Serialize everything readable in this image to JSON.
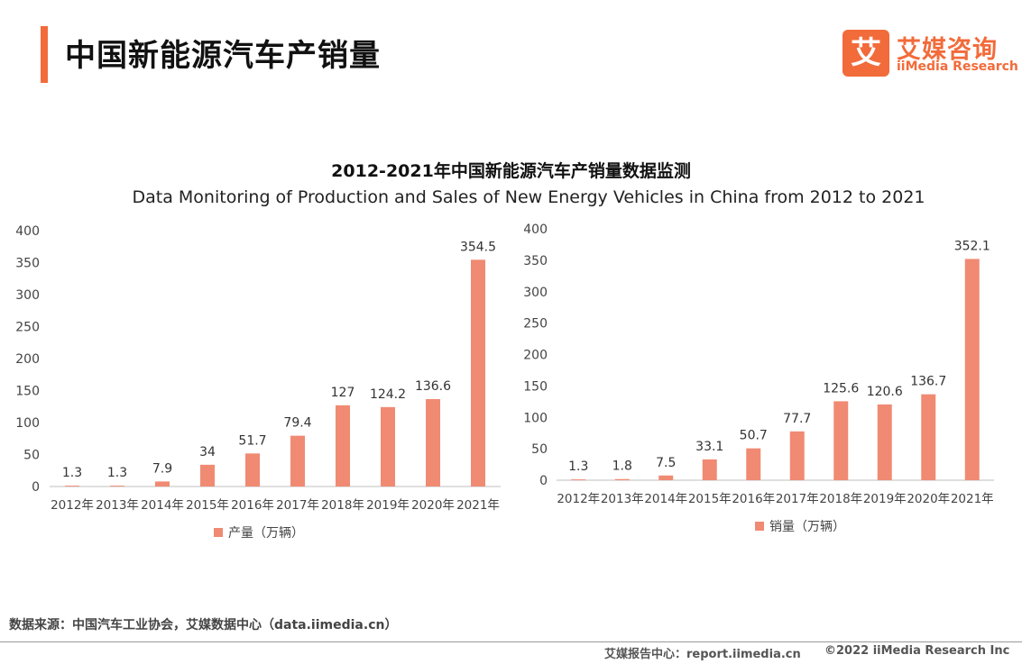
{
  "header": {
    "title": "中国新能源汽车产销量"
  },
  "logo": {
    "mark": "艾",
    "cn": "艾媒咨询",
    "en": "iiMedia Research"
  },
  "colors": {
    "accent": "#f26b3a",
    "bar": "#f08a73"
  },
  "chart_data": [
    {
      "type": "bar",
      "title": "2012-2021年中国新能源汽车产销量数据监测",
      "subtitle": "Data Monitoring of Production and Sales of New Energy Vehicles in China from 2012 to 2021",
      "categories": [
        "2012年",
        "2013年",
        "2014年",
        "2015年",
        "2016年",
        "2017年",
        "2018年",
        "2019年",
        "2020年",
        "2021年"
      ],
      "series": [
        {
          "name": "产量（万辆）",
          "values": [
            1.3,
            1.3,
            7.9,
            34,
            51.7,
            79.4,
            127,
            124.2,
            136.6,
            354.5
          ]
        }
      ],
      "yticks": [
        "0",
        "50",
        "100",
        "150",
        "200",
        "250",
        "300",
        "350",
        "400"
      ],
      "ylim": [
        0,
        400
      ],
      "legend": "bottom-center"
    },
    {
      "type": "bar",
      "categories": [
        "2012年",
        "2013年",
        "2014年",
        "2015年",
        "2016年",
        "2017年",
        "2018年",
        "2019年",
        "2020年",
        "2021年"
      ],
      "series": [
        {
          "name": "销量（万辆）",
          "values": [
            1.3,
            1.8,
            7.5,
            33.1,
            50.7,
            77.7,
            125.6,
            120.6,
            136.7,
            352.1
          ]
        }
      ],
      "yticks": [
        "0",
        "50",
        "100",
        "150",
        "200",
        "250",
        "300",
        "350",
        "400"
      ],
      "ylim": [
        0,
        400
      ],
      "legend": "bottom-center"
    }
  ],
  "footer": {
    "source": "数据来源：中国汽车工业协会，艾媒数据中心（data.iimedia.cn）",
    "center": "艾媒报告中心：report.iimedia.cn",
    "copyright": "©2022  iiMedia Research  Inc"
  }
}
